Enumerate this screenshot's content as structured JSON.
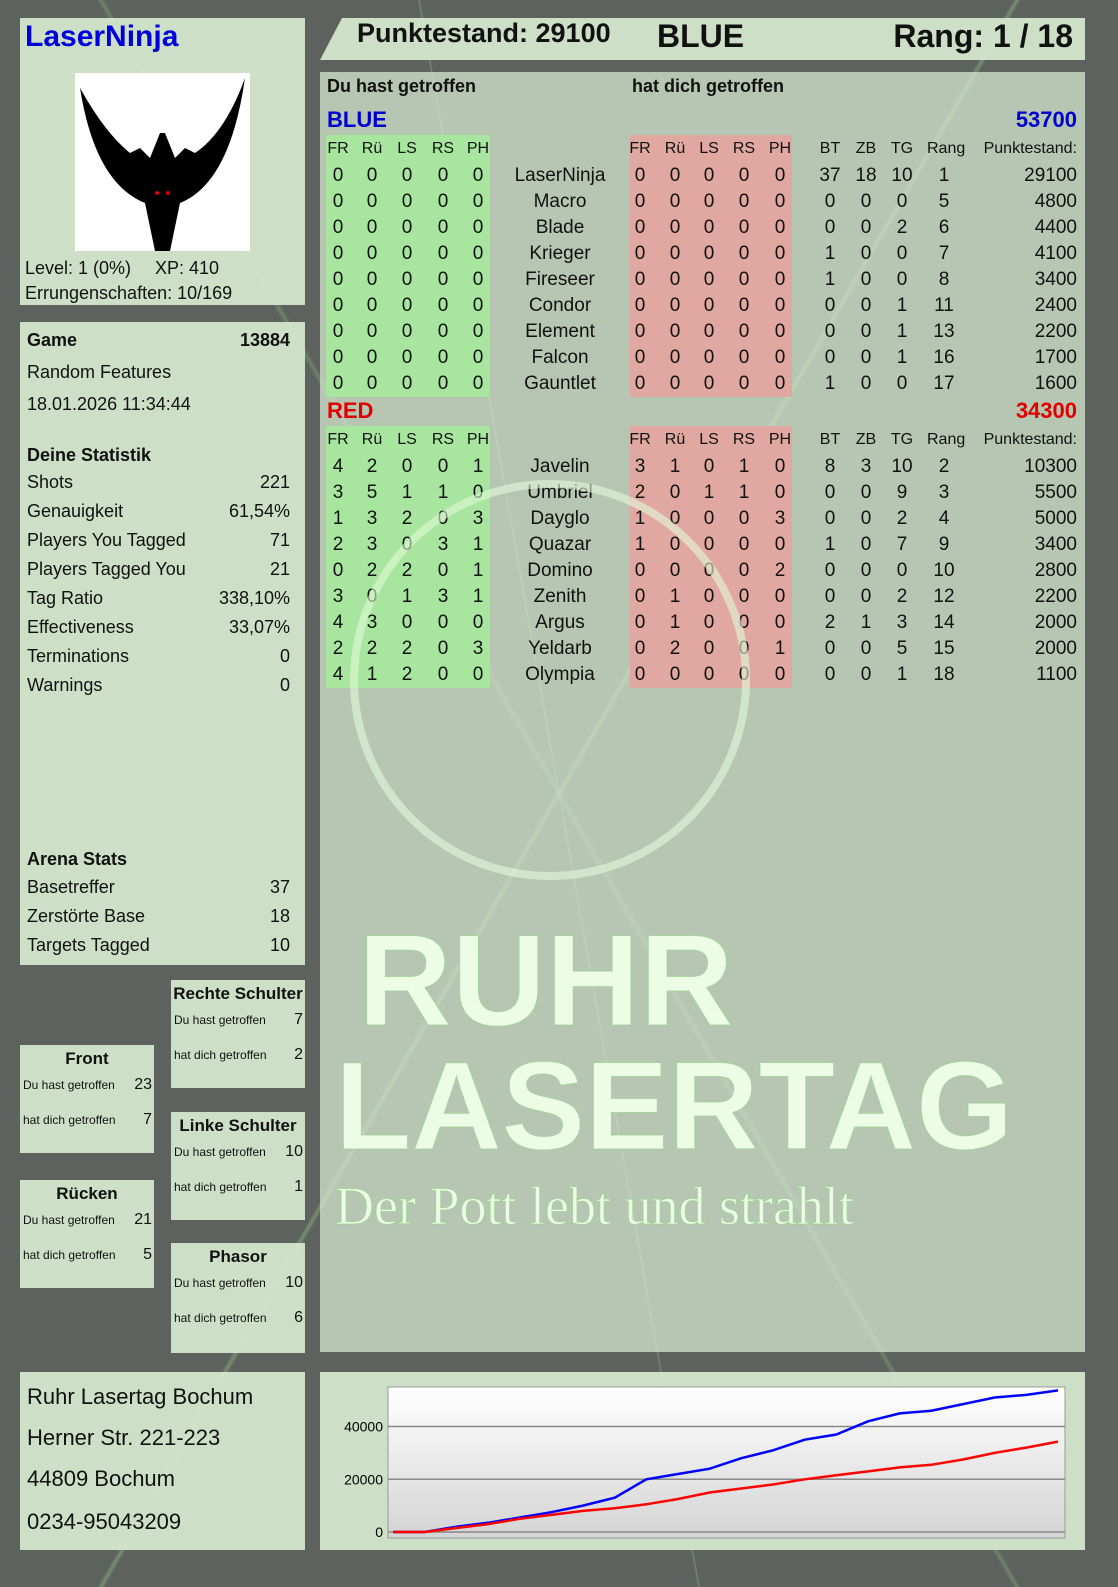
{
  "player": {
    "name": "LaserNinja",
    "level": "Level: 1 (0%)",
    "xp": "XP: 410",
    "achievements": "Errungenschaften: 10/169"
  },
  "header": {
    "score": "Punktestand: 29100",
    "team": "BLUE",
    "rank": "Rang: 1 / 18"
  },
  "game": {
    "label": "Game",
    "id": "13884",
    "mode": "Random Features",
    "datetime": "18.01.2026 11:34:44"
  },
  "stats": {
    "title": "Deine Statistik",
    "rows": [
      [
        "Shots",
        "221"
      ],
      [
        "Genauigkeit",
        "61,54%"
      ],
      [
        "Players You Tagged",
        "71"
      ],
      [
        "Players Tagged You",
        "21"
      ],
      [
        "Tag Ratio",
        "338,10%"
      ],
      [
        "Effectiveness",
        "33,07%"
      ],
      [
        "Terminations",
        "0"
      ],
      [
        "Warnings",
        "0"
      ]
    ]
  },
  "arena": {
    "title": "Arena Stats",
    "rows": [
      [
        "Basetreffer",
        "37"
      ],
      [
        "Zerstörte Base",
        "18"
      ],
      [
        "Targets Tagged",
        "10"
      ]
    ]
  },
  "zones": {
    "you_hit": "Du hast getroffen",
    "hit_you": "hat dich getroffen",
    "items": [
      {
        "name": "Rechte Schulter",
        "you": "7",
        "them": "2"
      },
      {
        "name": "Front",
        "you": "23",
        "them": "7"
      },
      {
        "name": "Linke Schulter",
        "you": "10",
        "them": "1"
      },
      {
        "name": "Rücken",
        "you": "21",
        "them": "5"
      },
      {
        "name": "Phasor",
        "you": "10",
        "them": "6"
      }
    ]
  },
  "address": [
    "Ruhr Lasertag Bochum",
    "Herner Str. 221-223",
    "44809 Bochum",
    "0234-95043209"
  ],
  "table": {
    "you_hit": "Du hast getroffen",
    "hit_you": "hat dich getroffen",
    "hit_cols": [
      "FR",
      "Rü",
      "LS",
      "RS",
      "PH"
    ],
    "stat_cols": [
      "BT",
      "ZB",
      "TG",
      "Rang"
    ],
    "score_col": "Punktestand:",
    "teams": [
      {
        "name": "BLUE",
        "total": "53700",
        "color": "#0000cc",
        "players": [
          [
            "LaserNinja",
            [
              0,
              0,
              0,
              0,
              0
            ],
            [
              0,
              0,
              0,
              0,
              0
            ],
            [
              37,
              18,
              10,
              1
            ],
            29100
          ],
          [
            "Macro",
            [
              0,
              0,
              0,
              0,
              0
            ],
            [
              0,
              0,
              0,
              0,
              0
            ],
            [
              0,
              0,
              0,
              5
            ],
            4800
          ],
          [
            "Blade",
            [
              0,
              0,
              0,
              0,
              0
            ],
            [
              0,
              0,
              0,
              0,
              0
            ],
            [
              0,
              0,
              2,
              6
            ],
            4400
          ],
          [
            "Krieger",
            [
              0,
              0,
              0,
              0,
              0
            ],
            [
              0,
              0,
              0,
              0,
              0
            ],
            [
              1,
              0,
              0,
              7
            ],
            4100
          ],
          [
            "Fireseer",
            [
              0,
              0,
              0,
              0,
              0
            ],
            [
              0,
              0,
              0,
              0,
              0
            ],
            [
              1,
              0,
              0,
              8
            ],
            3400
          ],
          [
            "Condor",
            [
              0,
              0,
              0,
              0,
              0
            ],
            [
              0,
              0,
              0,
              0,
              0
            ],
            [
              0,
              0,
              1,
              11
            ],
            2400
          ],
          [
            "Element",
            [
              0,
              0,
              0,
              0,
              0
            ],
            [
              0,
              0,
              0,
              0,
              0
            ],
            [
              0,
              0,
              1,
              13
            ],
            2200
          ],
          [
            "Falcon",
            [
              0,
              0,
              0,
              0,
              0
            ],
            [
              0,
              0,
              0,
              0,
              0
            ],
            [
              0,
              0,
              1,
              16
            ],
            1700
          ],
          [
            "Gauntlet",
            [
              0,
              0,
              0,
              0,
              0
            ],
            [
              0,
              0,
              0,
              0,
              0
            ],
            [
              1,
              0,
              0,
              17
            ],
            1600
          ]
        ]
      },
      {
        "name": "RED",
        "total": "34300",
        "color": "#e00000",
        "players": [
          [
            "Javelin",
            [
              4,
              2,
              0,
              0,
              1
            ],
            [
              3,
              1,
              0,
              1,
              0
            ],
            [
              8,
              3,
              10,
              2
            ],
            10300
          ],
          [
            "Umbriel",
            [
              3,
              5,
              1,
              1,
              0
            ],
            [
              2,
              0,
              1,
              1,
              0
            ],
            [
              0,
              0,
              9,
              3
            ],
            5500
          ],
          [
            "Dayglo",
            [
              1,
              3,
              2,
              0,
              3
            ],
            [
              1,
              0,
              0,
              0,
              3
            ],
            [
              0,
              0,
              2,
              4
            ],
            5000
          ],
          [
            "Quazar",
            [
              2,
              3,
              0,
              3,
              1
            ],
            [
              1,
              0,
              0,
              0,
              0
            ],
            [
              1,
              0,
              7,
              9
            ],
            3400
          ],
          [
            "Domino",
            [
              0,
              2,
              2,
              0,
              1
            ],
            [
              0,
              0,
              0,
              0,
              2
            ],
            [
              0,
              0,
              0,
              10
            ],
            2800
          ],
          [
            "Zenith",
            [
              3,
              0,
              1,
              3,
              1
            ],
            [
              0,
              1,
              0,
              0,
              0
            ],
            [
              0,
              0,
              2,
              12
            ],
            2200
          ],
          [
            "Argus",
            [
              4,
              3,
              0,
              0,
              0
            ],
            [
              0,
              1,
              0,
              0,
              0
            ],
            [
              2,
              1,
              3,
              14
            ],
            2000
          ],
          [
            "Yeldarb",
            [
              2,
              2,
              2,
              0,
              3
            ],
            [
              0,
              2,
              0,
              0,
              1
            ],
            [
              0,
              0,
              5,
              15
            ],
            2000
          ],
          [
            "Olympia",
            [
              4,
              1,
              2,
              0,
              0
            ],
            [
              0,
              0,
              0,
              0,
              0
            ],
            [
              0,
              0,
              1,
              18
            ],
            1100
          ]
        ]
      }
    ]
  },
  "colors": {
    "hit_green": "#a8e6a0",
    "hit_red": "#e0a8a0"
  },
  "watermark": {
    "line1": "RUHR",
    "line2": "LASERTAG",
    "slogan": "Der Pott lebt und strahlt"
  },
  "chart_data": {
    "type": "line",
    "ylim": [
      0,
      55000
    ],
    "yticks": [
      0,
      20000,
      40000
    ],
    "grid": true,
    "series": [
      {
        "color": "#0000ff",
        "values": [
          0,
          0,
          2000,
          3500,
          5500,
          7500,
          10000,
          13000,
          20000,
          22000,
          24000,
          28000,
          31000,
          35000,
          37000,
          42000,
          45000,
          46000,
          48500,
          51000,
          52000,
          53700
        ]
      },
      {
        "color": "#ff0000",
        "values": [
          0,
          0,
          1500,
          3000,
          5000,
          6500,
          8000,
          9000,
          10500,
          12500,
          15000,
          16500,
          18000,
          20000,
          21500,
          23000,
          24500,
          25500,
          27500,
          30000,
          32000,
          34300
        ]
      }
    ]
  }
}
